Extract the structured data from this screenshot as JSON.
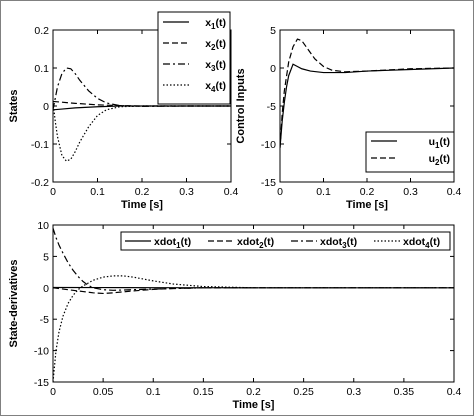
{
  "chart_data": [
    {
      "type": "line",
      "xlabel": "Time [s]",
      "ylabel": "States",
      "xlim": [
        0,
        0.4
      ],
      "ylim": [
        -0.2,
        0.2
      ],
      "xticks": [
        "0",
        "0.1",
        "0.2",
        "0.3",
        "0.4"
      ],
      "yticks": [
        "-0.2",
        "-0.1",
        "0",
        "0.1",
        "0.2"
      ],
      "legend_position": "top-right",
      "series": [
        {
          "name": "x1(t)",
          "style": "solid",
          "x": [
            0,
            0.02,
            0.05,
            0.1,
            0.15,
            0.2,
            0.3,
            0.4
          ],
          "y": [
            -0.01,
            -0.008,
            -0.005,
            -0.002,
            0,
            0,
            0,
            0
          ]
        },
        {
          "name": "x2(t)",
          "style": "dashed",
          "x": [
            0,
            0.02,
            0.05,
            0.1,
            0.15,
            0.2,
            0.3,
            0.4
          ],
          "y": [
            0.012,
            0.01,
            0.007,
            0.003,
            0.001,
            0,
            0,
            0
          ]
        },
        {
          "name": "x3(t)",
          "style": "dashdot",
          "x": [
            0,
            0.005,
            0.01,
            0.02,
            0.03,
            0.04,
            0.05,
            0.06,
            0.08,
            0.1,
            0.12,
            0.15,
            0.2,
            0.3,
            0.4
          ],
          "y": [
            -0.01,
            0.02,
            0.05,
            0.085,
            0.1,
            0.098,
            0.085,
            0.068,
            0.04,
            0.02,
            0.008,
            0.001,
            -0.001,
            0,
            0
          ]
        },
        {
          "name": "x4(t)",
          "style": "dotted",
          "x": [
            0,
            0.005,
            0.01,
            0.02,
            0.03,
            0.04,
            0.05,
            0.06,
            0.08,
            0.1,
            0.12,
            0.15,
            0.2,
            0.3,
            0.4
          ],
          "y": [
            0.01,
            -0.04,
            -0.08,
            -0.13,
            -0.145,
            -0.14,
            -0.12,
            -0.095,
            -0.055,
            -0.025,
            -0.01,
            -0.002,
            0,
            0,
            0
          ]
        }
      ]
    },
    {
      "type": "line",
      "xlabel": "Time [s]",
      "ylabel": "Control Inputs",
      "xlim": [
        0,
        0.4
      ],
      "ylim": [
        -15,
        5
      ],
      "xticks": [
        "0",
        "0.1",
        "0.2",
        "0.3",
        "0.4"
      ],
      "yticks": [
        "-15",
        "-10",
        "-5",
        "0",
        "5"
      ],
      "legend_position": "bottom-right",
      "series": [
        {
          "name": "u1(t)",
          "style": "solid",
          "x": [
            0,
            0.005,
            0.01,
            0.015,
            0.02,
            0.03,
            0.04,
            0.05,
            0.07,
            0.1,
            0.15,
            0.2,
            0.3,
            0.4
          ],
          "y": [
            -10.5,
            -7,
            -4.5,
            -2.5,
            -1,
            0.5,
            0.2,
            -0.1,
            -0.4,
            -0.6,
            -0.6,
            -0.4,
            -0.2,
            0
          ]
        },
        {
          "name": "u2(t)",
          "style": "dashed",
          "x": [
            0,
            0.005,
            0.01,
            0.02,
            0.03,
            0.04,
            0.05,
            0.06,
            0.08,
            0.1,
            0.12,
            0.15,
            0.2,
            0.3,
            0.4
          ],
          "y": [
            -10.5,
            -6,
            -3,
            0.8,
            2.8,
            3.8,
            3.6,
            2.8,
            1.2,
            0.2,
            -0.3,
            -0.5,
            -0.4,
            -0.1,
            0
          ]
        }
      ]
    },
    {
      "type": "line",
      "xlabel": "Time [s]",
      "ylabel": "State-derivatives",
      "xlim": [
        0,
        0.4
      ],
      "ylim": [
        -15,
        10
      ],
      "xticks": [
        "0",
        "0.05",
        "0.1",
        "0.15",
        "0.2",
        "0.25",
        "0.3",
        "0.35",
        "0.4"
      ],
      "yticks": [
        "-15",
        "-10",
        "-5",
        "0",
        "5",
        "10"
      ],
      "legend_position": "top",
      "series": [
        {
          "name": "xdot1(t)",
          "style": "solid",
          "x": [
            0,
            0.05,
            0.1,
            0.2,
            0.3,
            0.4
          ],
          "y": [
            0.05,
            0.04,
            0.02,
            0,
            0,
            0
          ]
        },
        {
          "name": "xdot2(t)",
          "style": "dashed",
          "x": [
            0,
            0.01,
            0.02,
            0.03,
            0.04,
            0.05,
            0.06,
            0.08,
            0.1,
            0.12,
            0.15,
            0.2,
            0.3,
            0.4
          ],
          "y": [
            0,
            -0.2,
            -0.4,
            -0.6,
            -0.8,
            -0.9,
            -0.8,
            -0.5,
            -0.25,
            -0.1,
            0,
            0,
            0,
            0
          ]
        },
        {
          "name": "xdot3(t)",
          "style": "dashdot",
          "x": [
            0,
            0.003,
            0.006,
            0.01,
            0.015,
            0.02,
            0.025,
            0.03,
            0.035,
            0.04,
            0.05,
            0.06,
            0.08,
            0.1,
            0.15,
            0.2,
            0.3,
            0.4
          ],
          "y": [
            9.5,
            8,
            6.8,
            5.5,
            4,
            2.8,
            1.8,
            1,
            0.4,
            0,
            -0.3,
            -0.4,
            -0.3,
            -0.2,
            0,
            0,
            0,
            0
          ]
        },
        {
          "name": "xdot4(t)",
          "style": "dotted",
          "x": [
            0,
            0.003,
            0.006,
            0.01,
            0.015,
            0.02,
            0.025,
            0.03,
            0.04,
            0.05,
            0.06,
            0.07,
            0.08,
            0.1,
            0.12,
            0.15,
            0.2,
            0.3,
            0.4
          ],
          "y": [
            -15,
            -10,
            -7,
            -4.5,
            -2.5,
            -1.2,
            -0.3,
            0.3,
            1.2,
            1.7,
            1.9,
            1.9,
            1.7,
            1.1,
            0.6,
            0.2,
            0,
            0,
            0
          ]
        }
      ]
    }
  ]
}
